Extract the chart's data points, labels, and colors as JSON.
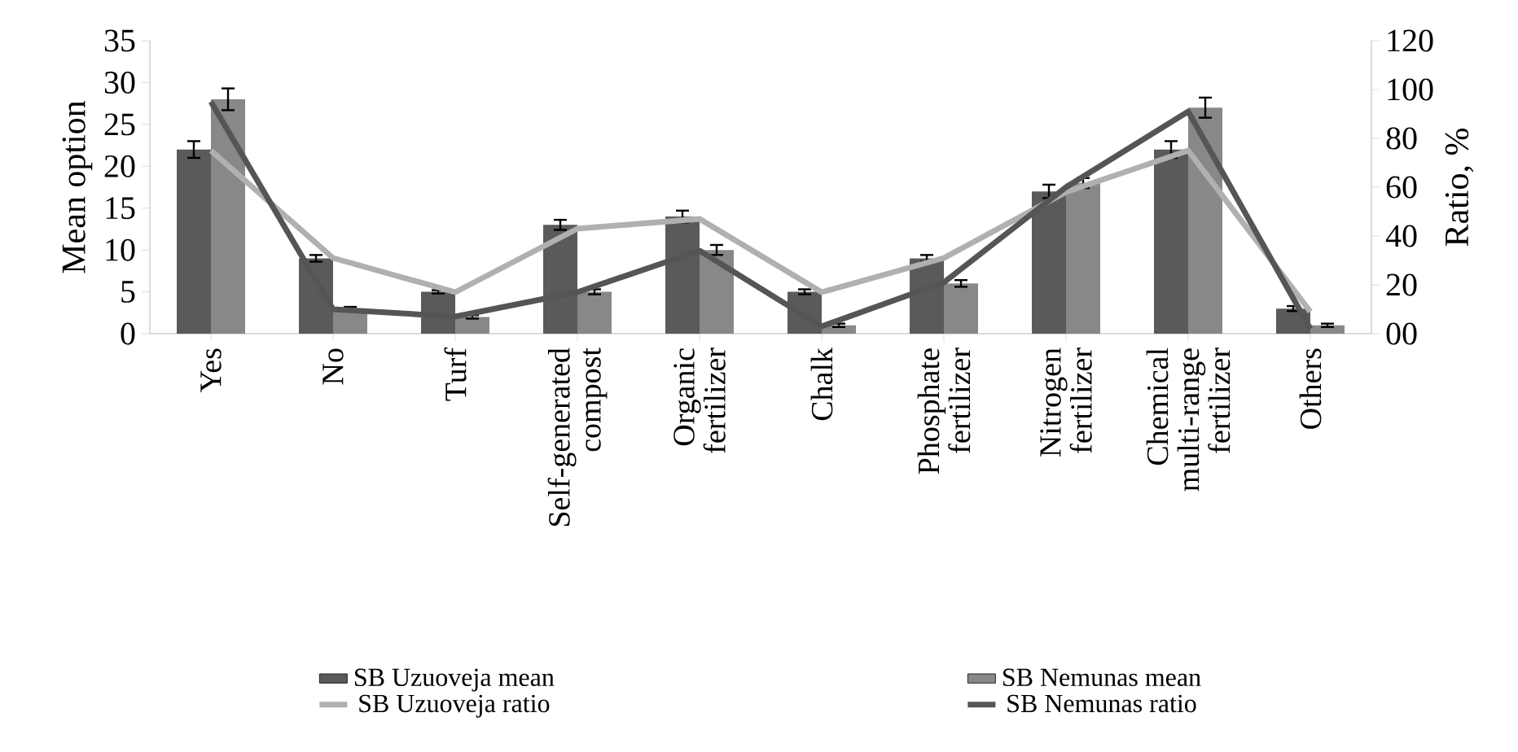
{
  "chart_data": {
    "type": "bar",
    "ylabel": "Mean option",
    "y2label": "Ratio, %",
    "categories": [
      "Yes",
      "No",
      "Turf",
      "Self-generated compost",
      "Organic fertilizer",
      "Chalk",
      "Phosphate fertilizer",
      "Nitrogen fertilizer",
      "Chemical multi-range fertilizer",
      "Others"
    ],
    "series": [
      {
        "name": "SB Uzuoveja mean",
        "color": "#5a5a5a",
        "values": [
          22,
          9,
          5,
          13,
          14,
          5,
          9,
          17,
          22,
          3
        ],
        "errors": [
          1,
          0.4,
          0.2,
          0.6,
          0.7,
          0.3,
          0.4,
          0.8,
          1,
          0.3
        ]
      },
      {
        "name": "SB Nemunas mean",
        "color": "#888888",
        "values": [
          28,
          3,
          2,
          5,
          10,
          1,
          6,
          18,
          27,
          1
        ],
        "errors": [
          1.3,
          0.2,
          0.2,
          0.3,
          0.6,
          0.2,
          0.4,
          0.6,
          1.2,
          0.2
        ]
      },
      {
        "name": "SB Uzuoveja ratio",
        "type": "line",
        "axis": "y2",
        "color": "#b0b0b0",
        "values": [
          75,
          31,
          17,
          43,
          47,
          17,
          31,
          58,
          75,
          9
        ]
      },
      {
        "name": "SB Nemunas ratio",
        "type": "line",
        "axis": "y2",
        "color": "#555555",
        "values": [
          95,
          10,
          7,
          17,
          34,
          3,
          21,
          60,
          91,
          2
        ]
      }
    ],
    "ylim": [
      0,
      35
    ],
    "yticks": [
      0,
      5,
      10,
      15,
      20,
      25,
      30,
      35
    ],
    "y2lim": [
      0,
      120
    ],
    "y2ticks": [
      {
        "value": 0,
        "label": "00"
      },
      20,
      40,
      60,
      80,
      100,
      120
    ],
    "legend": "bottom"
  }
}
